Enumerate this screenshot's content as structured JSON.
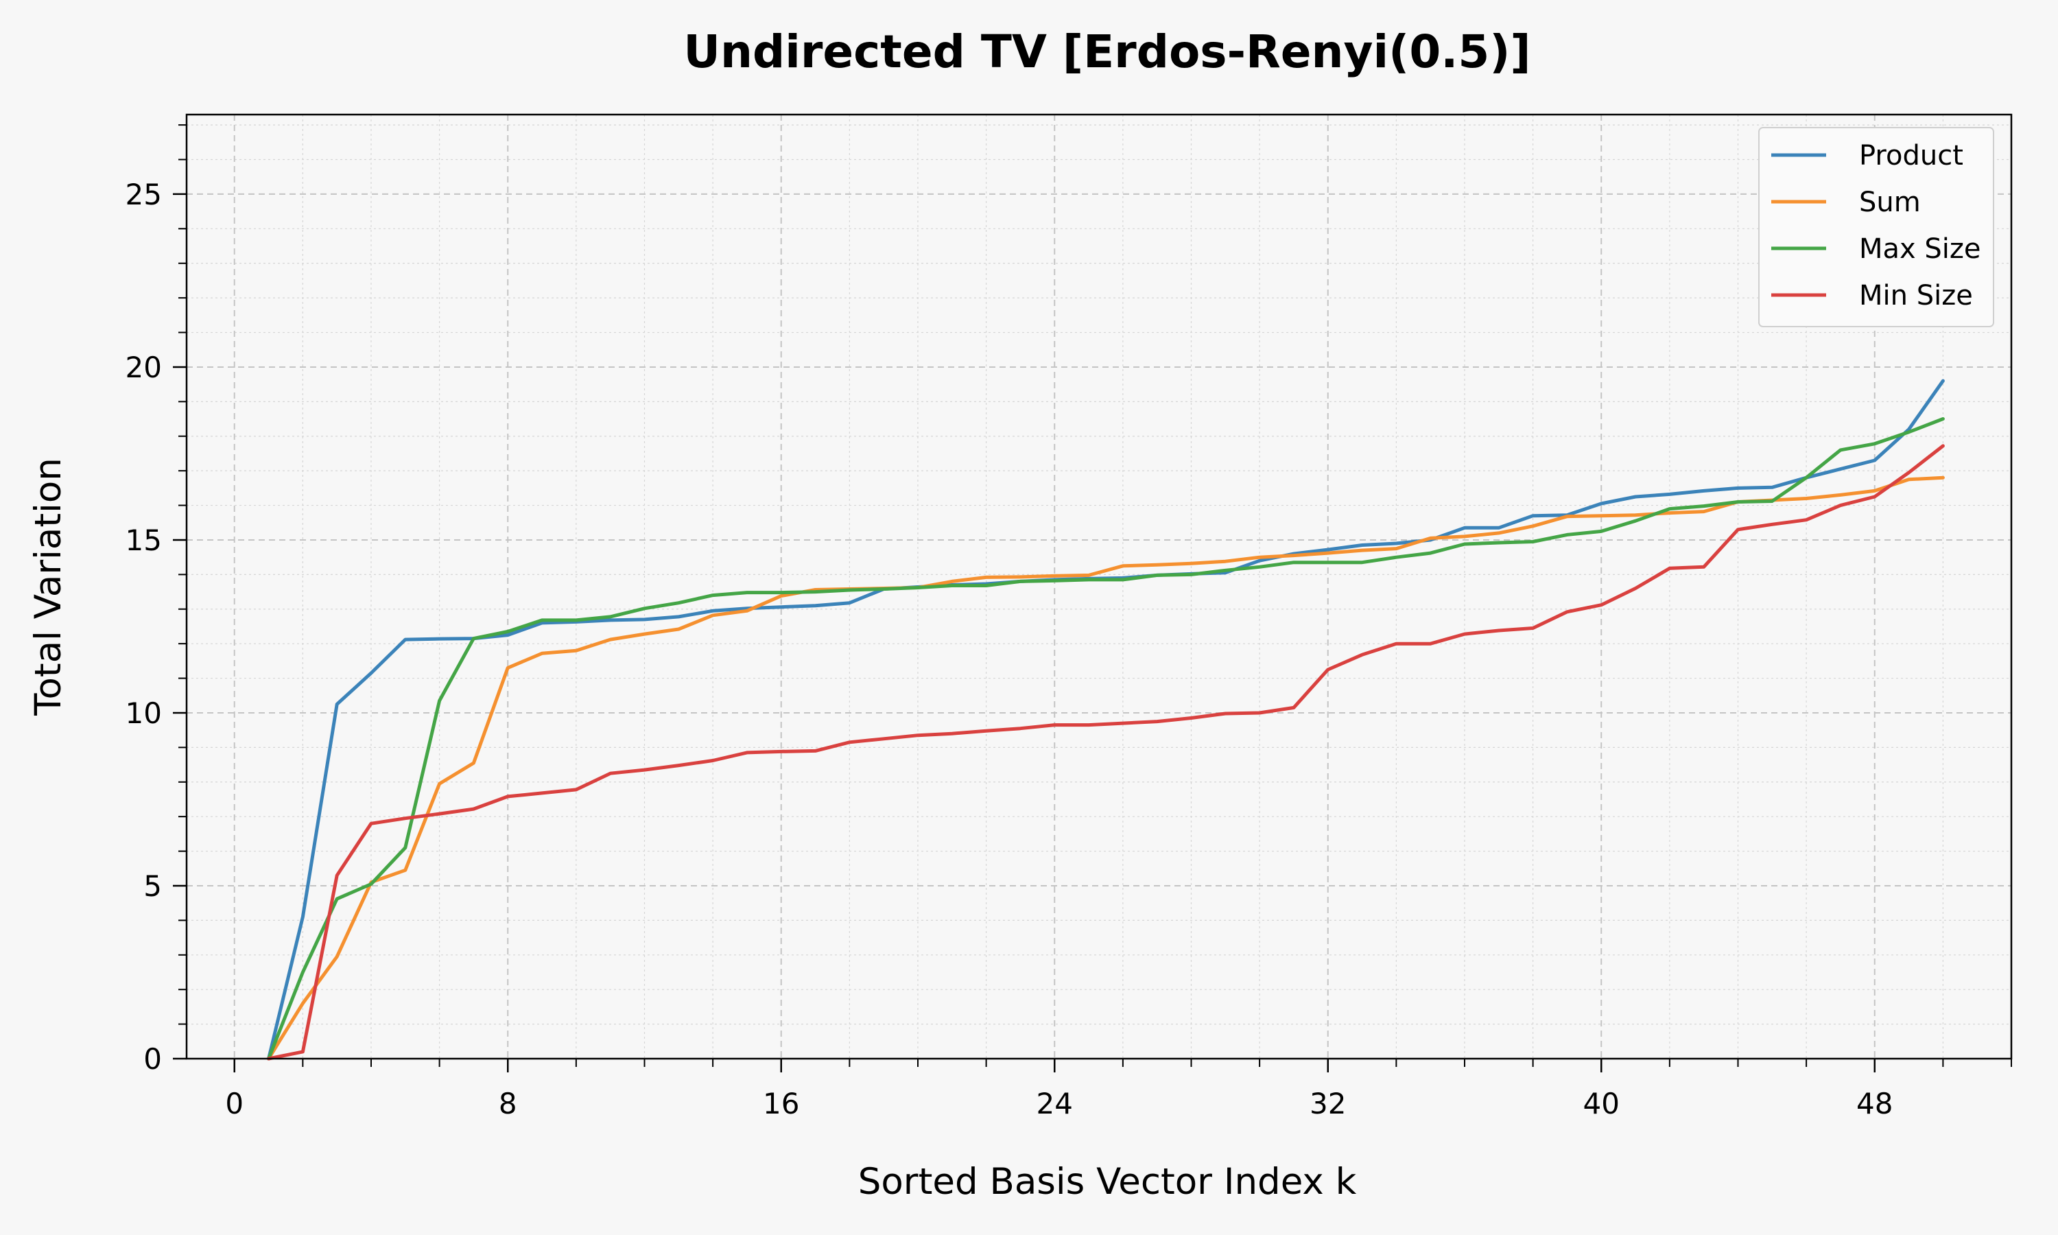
{
  "chart_data": {
    "type": "line",
    "title": "Undirected TV [Erdos-Renyi(0.5)]",
    "xlabel": "Sorted Basis Vector Index k",
    "ylabel": "Total Variation",
    "xlim": [
      -1.4,
      52.0
    ],
    "ylim": [
      0,
      27.3
    ],
    "xticks": [
      0,
      8,
      16,
      24,
      32,
      40,
      48
    ],
    "yticks": [
      0,
      5,
      10,
      15,
      20,
      25
    ],
    "grid": true,
    "legend_position": "top-right",
    "x": [
      1,
      2,
      3,
      4,
      5,
      6,
      7,
      8,
      9,
      10,
      11,
      12,
      13,
      14,
      15,
      16,
      17,
      18,
      19,
      20,
      21,
      22,
      23,
      24,
      25,
      26,
      27,
      28,
      29,
      30,
      31,
      32,
      33,
      34,
      35,
      36,
      37,
      38,
      39,
      40,
      41,
      42,
      43,
      44,
      45,
      46,
      47,
      48,
      49,
      50
    ],
    "series": [
      {
        "name": "Product",
        "color": "#3b83b9",
        "values": [
          0.0,
          4.1,
          10.25,
          11.15,
          12.12,
          12.14,
          12.15,
          12.25,
          12.6,
          12.63,
          12.68,
          12.7,
          12.78,
          12.95,
          13.02,
          13.06,
          13.1,
          13.18,
          13.58,
          13.64,
          13.7,
          13.73,
          13.8,
          13.85,
          13.88,
          13.9,
          13.98,
          14.02,
          14.05,
          14.4,
          14.6,
          14.72,
          14.85,
          14.9,
          15.0,
          15.35,
          15.35,
          15.7,
          15.72,
          16.05,
          16.25,
          16.32,
          16.42,
          16.5,
          16.52,
          16.8,
          17.05,
          17.3,
          18.2,
          19.6
        ]
      },
      {
        "name": "Sum",
        "color": "#f5902f",
        "values": [
          0.0,
          1.6,
          2.95,
          5.1,
          5.45,
          7.95,
          8.55,
          11.3,
          11.72,
          11.8,
          12.12,
          12.28,
          12.42,
          12.82,
          12.95,
          13.38,
          13.56,
          13.58,
          13.6,
          13.62,
          13.8,
          13.92,
          13.93,
          13.96,
          13.98,
          14.25,
          14.28,
          14.32,
          14.38,
          14.5,
          14.55,
          14.62,
          14.7,
          14.75,
          15.05,
          15.1,
          15.2,
          15.4,
          15.68,
          15.7,
          15.72,
          15.78,
          15.82,
          16.1,
          16.15,
          16.2,
          16.3,
          16.42,
          16.75,
          16.8
        ]
      },
      {
        "name": "Max Size",
        "color": "#44a546",
        "values": [
          0.0,
          2.5,
          4.62,
          5.05,
          6.1,
          10.35,
          12.15,
          12.35,
          12.68,
          12.68,
          12.78,
          13.02,
          13.18,
          13.4,
          13.48,
          13.48,
          13.5,
          13.55,
          13.58,
          13.62,
          13.68,
          13.68,
          13.8,
          13.82,
          13.85,
          13.85,
          13.98,
          14.0,
          14.12,
          14.22,
          14.35,
          14.35,
          14.35,
          14.5,
          14.62,
          14.88,
          14.92,
          14.95,
          15.15,
          15.25,
          15.55,
          15.9,
          15.98,
          16.1,
          16.12,
          16.8,
          17.6,
          17.78,
          18.12,
          18.5
        ]
      },
      {
        "name": "Min Size",
        "color": "#d9413f",
        "values": [
          0.0,
          0.2,
          5.3,
          6.8,
          6.95,
          7.08,
          7.22,
          7.58,
          7.68,
          7.78,
          8.25,
          8.35,
          8.48,
          8.62,
          8.85,
          8.88,
          8.9,
          9.15,
          9.25,
          9.35,
          9.4,
          9.48,
          9.55,
          9.65,
          9.65,
          9.7,
          9.75,
          9.85,
          9.98,
          10.0,
          10.15,
          11.25,
          11.68,
          12.0,
          12.0,
          12.28,
          12.38,
          12.45,
          12.92,
          13.12,
          13.6,
          14.18,
          14.22,
          15.3,
          15.45,
          15.58,
          16.0,
          16.25,
          16.95,
          17.72
        ]
      }
    ]
  }
}
